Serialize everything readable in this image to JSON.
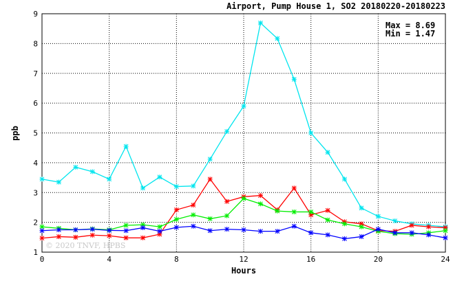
{
  "chart_data": {
    "type": "line",
    "title": "Airport, Pump House 1, SO2 20180220-20180223",
    "xlabel": "Hours",
    "ylabel": "ppb",
    "xlim": [
      0,
      24
    ],
    "ylim": [
      1,
      9
    ],
    "x_ticks": [
      0,
      4,
      8,
      12,
      16,
      20,
      24
    ],
    "y_ticks": [
      1,
      2,
      3,
      4,
      5,
      6,
      7,
      8,
      9
    ],
    "grid": true,
    "annotations": [
      "Max = 8.69",
      "Min = 1.47"
    ],
    "watermark": "© 2020 TNVF, HPBS",
    "x": [
      0,
      1,
      2,
      3,
      4,
      5,
      6,
      7,
      8,
      9,
      10,
      11,
      12,
      13,
      14,
      15,
      16,
      17,
      18,
      19,
      20,
      21,
      22,
      23,
      24
    ],
    "series": [
      {
        "color": "#00e5ee",
        "values": [
          3.45,
          3.35,
          3.85,
          3.7,
          3.45,
          4.55,
          3.15,
          3.52,
          3.2,
          3.22,
          4.12,
          5.05,
          5.9,
          8.69,
          8.17,
          6.8,
          5.0,
          4.35,
          3.45,
          2.48,
          2.2,
          2.05,
          1.95,
          1.9,
          1.85
        ]
      },
      {
        "color": "#ff0000",
        "values": [
          1.47,
          1.52,
          1.5,
          1.57,
          1.55,
          1.48,
          1.48,
          1.6,
          2.42,
          2.58,
          3.45,
          2.7,
          2.86,
          2.9,
          2.42,
          3.15,
          2.25,
          2.4,
          2.02,
          1.95,
          1.72,
          1.7,
          1.9,
          1.85,
          1.82
        ]
      },
      {
        "color": "#00ee00",
        "values": [
          1.85,
          1.8,
          1.75,
          1.78,
          1.75,
          1.9,
          1.92,
          1.85,
          2.1,
          2.25,
          2.12,
          2.22,
          2.8,
          2.62,
          2.38,
          2.35,
          2.35,
          2.08,
          1.95,
          1.85,
          1.7,
          1.62,
          1.6,
          1.65,
          1.72
        ]
      },
      {
        "color": "#0000ff",
        "values": [
          1.72,
          1.75,
          1.75,
          1.77,
          1.73,
          1.72,
          1.82,
          1.7,
          1.83,
          1.87,
          1.72,
          1.77,
          1.75,
          1.7,
          1.7,
          1.87,
          1.65,
          1.58,
          1.45,
          1.52,
          1.77,
          1.65,
          1.65,
          1.58,
          1.48
        ]
      }
    ]
  }
}
